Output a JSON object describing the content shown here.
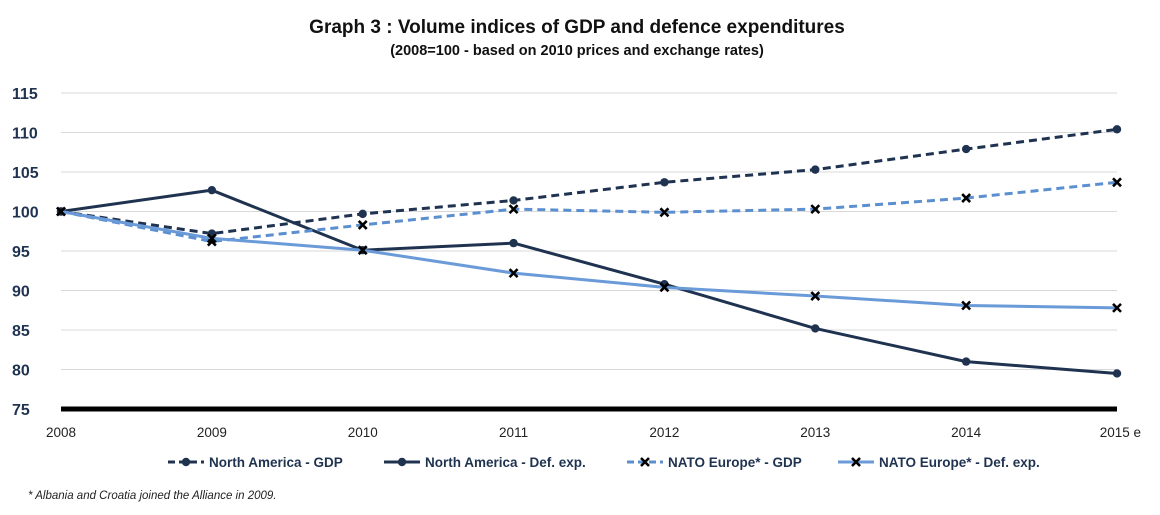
{
  "chart_data": {
    "type": "line",
    "title": "Graph 3 : Volume indices of GDP and defence expenditures",
    "subtitle": "(2008=100 - based on 2010 prices and exchange rates)",
    "categories": [
      "2008",
      "2009",
      "2010",
      "2011",
      "2012",
      "2013",
      "2014",
      "2015 e"
    ],
    "yticks": [
      75,
      80,
      85,
      90,
      95,
      100,
      105,
      110,
      115
    ],
    "ylim": [
      75,
      115
    ],
    "grid": true,
    "legend_position": "bottom",
    "series": [
      {
        "name": "North America - GDP",
        "values": [
          100,
          97.2,
          99.7,
          101.4,
          103.7,
          105.3,
          107.9,
          110.4
        ],
        "color": "#1f3350",
        "dash": "dashed",
        "marker": "circle"
      },
      {
        "name": "North America - Def. exp.",
        "values": [
          100,
          102.7,
          95.1,
          96.0,
          90.8,
          85.2,
          81.0,
          79.5
        ],
        "color": "#1f3350",
        "dash": "solid",
        "marker": "circle"
      },
      {
        "name": "NATO Europe* - GDP",
        "values": [
          100,
          96.2,
          98.3,
          100.3,
          99.9,
          100.3,
          101.7,
          103.7
        ],
        "color": "#5b8fcf",
        "dash": "dashed",
        "marker": "x"
      },
      {
        "name": "NATO Europe* - Def. exp.",
        "values": [
          100,
          96.6,
          95.1,
          92.2,
          90.4,
          89.3,
          88.1,
          87.8
        ],
        "color": "#6a9bd8",
        "dash": "solid",
        "marker": "x"
      }
    ],
    "footnote": "*   Albania and Croatia joined the Alliance in 2009."
  }
}
